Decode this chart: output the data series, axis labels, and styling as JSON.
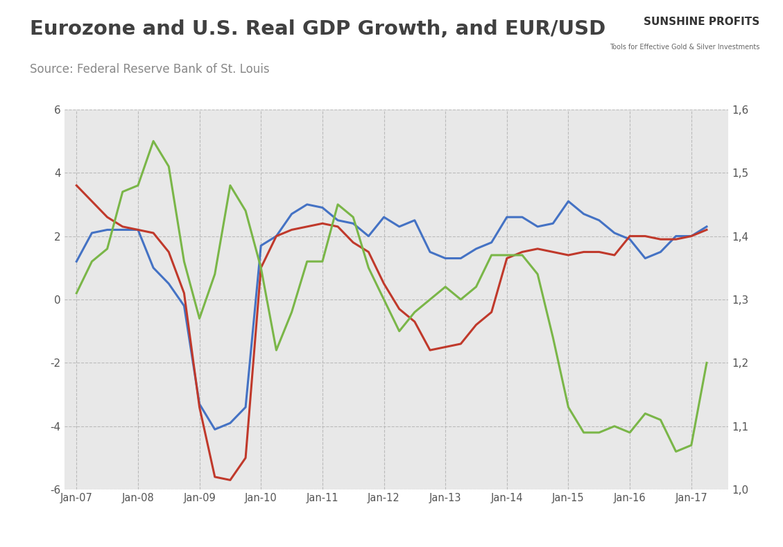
{
  "title": "Eurozone and U.S. Real GDP Growth, and EUR/USD",
  "source": "Source: Federal Reserve Bank of St. Louis",
  "title_fontsize": 21,
  "source_fontsize": 12,
  "chart_bg": "#e8e8e8",
  "outer_bg": "#ffffff",
  "border_color": "#cccccc",
  "ylim_left": [
    -6,
    6
  ],
  "ylim_right": [
    1.0,
    1.6
  ],
  "yticks_left": [
    -6,
    -4,
    -2,
    0,
    2,
    4,
    6
  ],
  "yticks_right": [
    1.0,
    1.1,
    1.2,
    1.3,
    1.4,
    1.5,
    1.6
  ],
  "xtick_labels": [
    "Jan-07",
    "Jan-08",
    "Jan-09",
    "Jan-10",
    "Jan-11",
    "Jan-12",
    "Jan-13",
    "Jan-14",
    "Jan-15",
    "Jan-16",
    "Jan-17"
  ],
  "blue_color": "#4472c4",
  "red_color": "#c0392b",
  "green_color": "#7ab648",
  "line_width": 2.2,
  "x_years": [
    2007.0,
    2007.25,
    2007.5,
    2007.75,
    2008.0,
    2008.25,
    2008.5,
    2008.75,
    2009.0,
    2009.25,
    2009.5,
    2009.75,
    2010.0,
    2010.25,
    2010.5,
    2010.75,
    2011.0,
    2011.25,
    2011.5,
    2011.75,
    2012.0,
    2012.25,
    2012.5,
    2012.75,
    2013.0,
    2013.25,
    2013.5,
    2013.75,
    2014.0,
    2014.25,
    2014.5,
    2014.75,
    2015.0,
    2015.25,
    2015.5,
    2015.75,
    2016.0,
    2016.25,
    2016.5,
    2016.75,
    2017.0,
    2017.25
  ],
  "blue_data": [
    1.2,
    2.1,
    2.2,
    2.2,
    2.2,
    1.0,
    0.5,
    -0.2,
    -3.3,
    -4.1,
    -3.9,
    -3.4,
    1.7,
    2.0,
    2.7,
    3.0,
    2.9,
    2.5,
    2.4,
    2.0,
    2.6,
    2.3,
    2.5,
    1.5,
    1.3,
    1.3,
    1.6,
    1.8,
    2.6,
    2.6,
    2.3,
    2.4,
    3.1,
    2.7,
    2.5,
    2.1,
    1.9,
    1.3,
    1.5,
    2.0,
    2.0,
    2.3
  ],
  "red_data": [
    3.6,
    3.1,
    2.6,
    2.3,
    2.2,
    2.1,
    1.5,
    0.2,
    -3.4,
    -5.6,
    -5.7,
    -5.0,
    1.0,
    2.0,
    2.2,
    2.3,
    2.4,
    2.3,
    1.8,
    1.5,
    0.5,
    -0.3,
    -0.7,
    -1.6,
    -1.5,
    -1.4,
    -0.8,
    -0.4,
    1.3,
    1.5,
    1.6,
    1.5,
    1.4,
    1.5,
    1.5,
    1.4,
    2.0,
    2.0,
    1.9,
    1.9,
    2.0,
    2.2
  ],
  "green_data": [
    1.31,
    1.36,
    1.38,
    1.47,
    1.48,
    1.55,
    1.51,
    1.36,
    1.27,
    1.34,
    1.48,
    1.44,
    1.35,
    1.22,
    1.28,
    1.36,
    1.36,
    1.45,
    1.43,
    1.35,
    1.3,
    1.25,
    1.28,
    1.3,
    1.32,
    1.3,
    1.32,
    1.37,
    1.37,
    1.37,
    1.34,
    1.24,
    1.13,
    1.09,
    1.09,
    1.1,
    1.09,
    1.12,
    1.11,
    1.06,
    1.07,
    1.2
  ],
  "logo_text1": "SUNSHINE PROFITS",
  "logo_text2": "Tools for Effective Gold & Silver Investments"
}
